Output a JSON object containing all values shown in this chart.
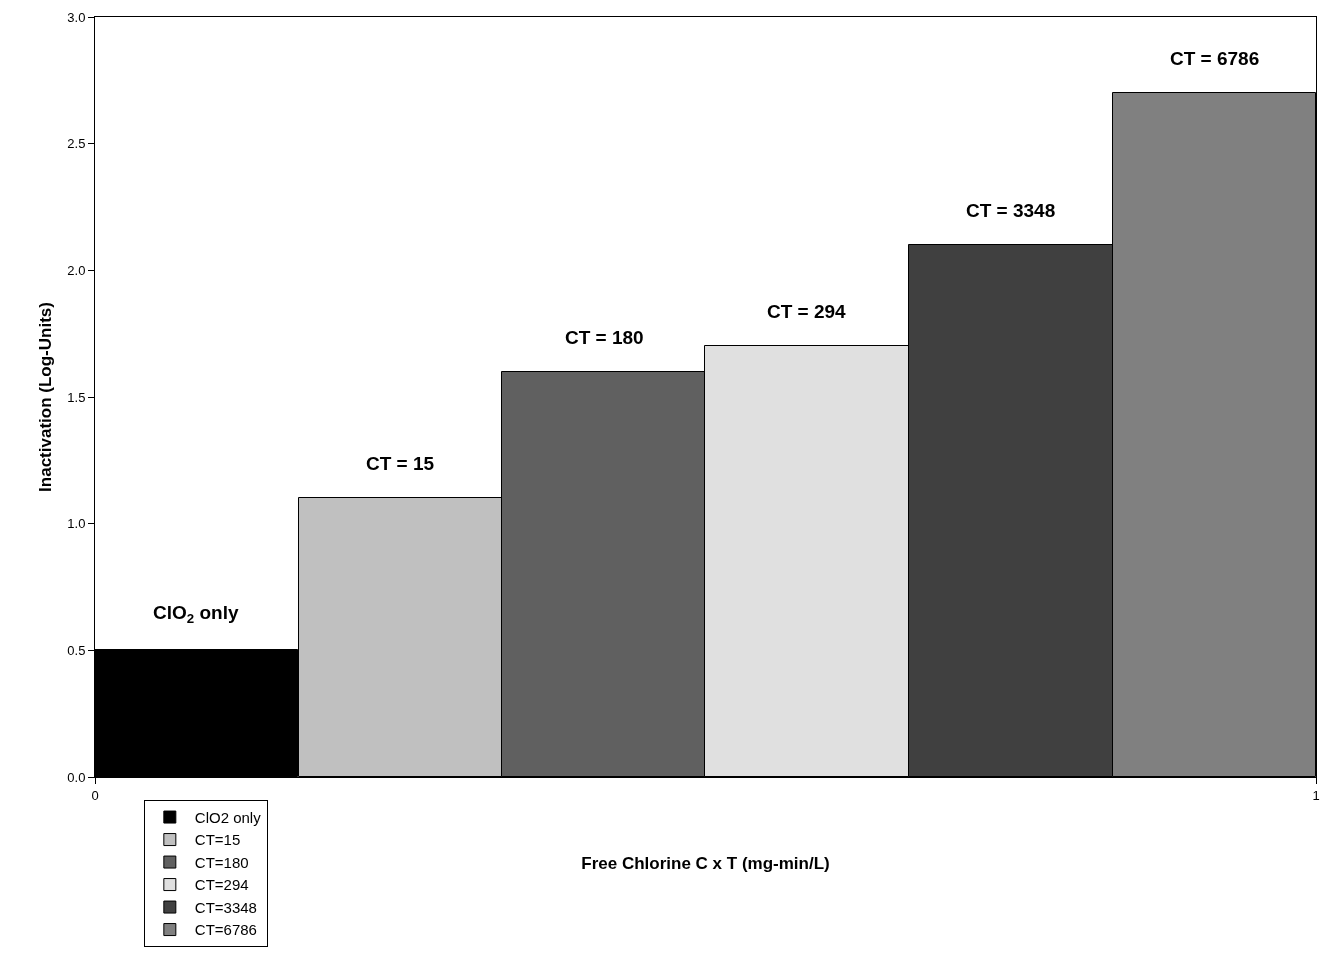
{
  "chart_data": {
    "type": "bar",
    "xlabel": "Free Chlorine C x T (mg-min/L)",
    "ylabel": "Inactivation (Log-Units)",
    "xlim": [
      0,
      1
    ],
    "xticks": [
      0,
      1
    ],
    "ylim": [
      0,
      3
    ],
    "yticks": [
      {
        "value": 0,
        "label": "0.0"
      },
      {
        "value": 0.5,
        "label": "0.5"
      },
      {
        "value": 1,
        "label": "1.0"
      },
      {
        "value": 1.5,
        "label": "1.5"
      },
      {
        "value": 2,
        "label": "2.0"
      },
      {
        "value": 2.5,
        "label": "2.5"
      },
      {
        "value": 3,
        "label": "3.0"
      }
    ],
    "series": [
      {
        "name": "ClO2 only",
        "color": "#000000",
        "x": [
          0.083
        ],
        "values": [
          0.5
        ]
      },
      {
        "name": "CT=15",
        "color": "#c0c0c0",
        "x": [
          0.25
        ],
        "values": [
          1.1
        ]
      },
      {
        "name": "CT=180",
        "color": "#606060",
        "x": [
          0.417
        ],
        "values": [
          1.6
        ]
      },
      {
        "name": "CT=294",
        "color": "#e0e0e0",
        "x": [
          0.583
        ],
        "values": [
          1.7
        ]
      },
      {
        "name": "CT=3348",
        "color": "#404040",
        "x": [
          0.75
        ],
        "values": [
          2.1
        ]
      },
      {
        "name": "CT=6786",
        "color": "#808080",
        "x": [
          0.917
        ],
        "values": [
          2.7
        ]
      }
    ],
    "annotations": [
      {
        "text": "ClO$_{2}$ only",
        "x": 0.083,
        "y": 0.5
      },
      {
        "text": "CT = 15",
        "x": 0.25,
        "y": 1.1
      },
      {
        "text": "CT = 180",
        "x": 0.417,
        "y": 1.6
      },
      {
        "text": "CT = 294",
        "x": 0.583,
        "y": 1.7
      },
      {
        "text": "CT = 3348",
        "x": 0.75,
        "y": 2.1
      },
      {
        "text": "CT = 6786",
        "x": 0.917,
        "y": 2.7
      }
    ],
    "grid": false,
    "legend": "bottom left"
  }
}
